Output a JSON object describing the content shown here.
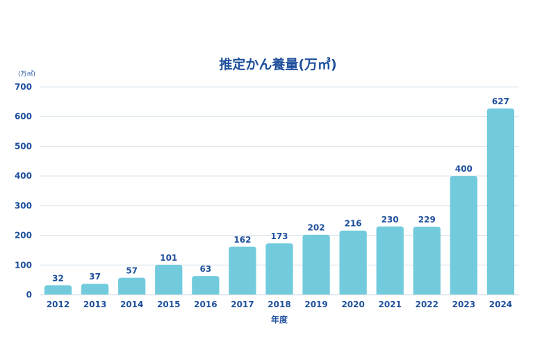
{
  "chart_data": {
    "type": "bar",
    "title": "推定かん養量(万㎥)",
    "unit_label": "(万㎥)",
    "xlabel": "年度",
    "ylabel": "",
    "ylim": [
      0,
      700
    ],
    "yticks": [
      "0",
      "100",
      "200",
      "300",
      "400",
      "500",
      "600",
      "700"
    ],
    "categories": [
      "2012",
      "2013",
      "2014",
      "2015",
      "2016",
      "2017",
      "2018",
      "2019",
      "2020",
      "2021",
      "2022",
      "2023",
      "2024"
    ],
    "values": [
      32,
      37,
      57,
      101,
      63,
      162,
      173,
      202,
      216,
      230,
      229,
      400,
      627
    ],
    "grid": true,
    "data_labels": true,
    "legend": "none"
  },
  "colors": {
    "bar": "#72cbdc",
    "text": "#1e4f9c",
    "grid": "#d7e3ec"
  }
}
